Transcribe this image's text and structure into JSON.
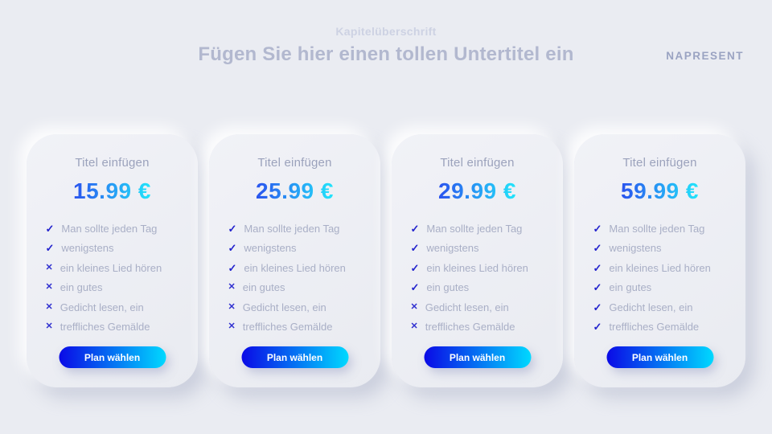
{
  "page": {
    "eyebrow": "Kapitelüberschrift",
    "subtitle": "Fügen Sie hier einen tollen Untertitel ein",
    "logo": "NAPRESENT"
  },
  "icons": {
    "check": "✓",
    "cross": "✕"
  },
  "colors": {
    "page_bg": "#eaecf2",
    "eyebrow_color": "#cdd2e3",
    "subtitle_color": "#b2b8cf",
    "logo_color": "#9aa3c2",
    "card_title_color": "#9ba2bc",
    "feature_color": "#a9afc6",
    "check_color": "#2323cd",
    "cross_color": "#3030d0",
    "price_start": "#2a52ee",
    "price_end": "#22e6fb",
    "button_start": "#0a0ae6",
    "button_end": "#00d9ff"
  },
  "cards": [
    {
      "title": "Titel einfügen",
      "price": "15.99 €",
      "button_label": "Plan wählen",
      "features": [
        {
          "text": "Man sollte jeden Tag",
          "included": true
        },
        {
          "text": " wenigstens",
          "included": true
        },
        {
          "text": "ein kleines Lied hören",
          "included": false
        },
        {
          "text": "ein gutes",
          "included": false
        },
        {
          "text": "Gedicht lesen, ein",
          "included": false
        },
        {
          "text": "treffliches Gemälde",
          "included": false
        }
      ]
    },
    {
      "title": "Titel einfügen",
      "price": "25.99 €",
      "button_label": "Plan wählen",
      "features": [
        {
          "text": "Man sollte jeden Tag",
          "included": true
        },
        {
          "text": " wenigstens",
          "included": true
        },
        {
          "text": "ein kleines Lied hören",
          "included": true
        },
        {
          "text": "ein gutes",
          "included": false
        },
        {
          "text": "Gedicht lesen, ein",
          "included": false
        },
        {
          "text": "treffliches Gemälde",
          "included": false
        }
      ]
    },
    {
      "title": "Titel einfügen",
      "price": "29.99 €",
      "button_label": "Plan wählen",
      "features": [
        {
          "text": "Man sollte jeden Tag",
          "included": true
        },
        {
          "text": " wenigstens",
          "included": true
        },
        {
          "text": "ein kleines Lied hören",
          "included": true
        },
        {
          "text": "ein gutes",
          "included": true
        },
        {
          "text": "Gedicht lesen, ein",
          "included": false
        },
        {
          "text": "treffliches Gemälde",
          "included": false
        }
      ]
    },
    {
      "title": "Titel einfügen",
      "price": "59.99 €",
      "button_label": "Plan wählen",
      "features": [
        {
          "text": "Man sollte jeden Tag",
          "included": true
        },
        {
          "text": " wenigstens",
          "included": true
        },
        {
          "text": "ein kleines Lied hören",
          "included": true
        },
        {
          "text": "ein gutes",
          "included": true
        },
        {
          "text": "Gedicht lesen, ein",
          "included": true
        },
        {
          "text": "treffliches Gemälde",
          "included": true
        }
      ]
    }
  ]
}
